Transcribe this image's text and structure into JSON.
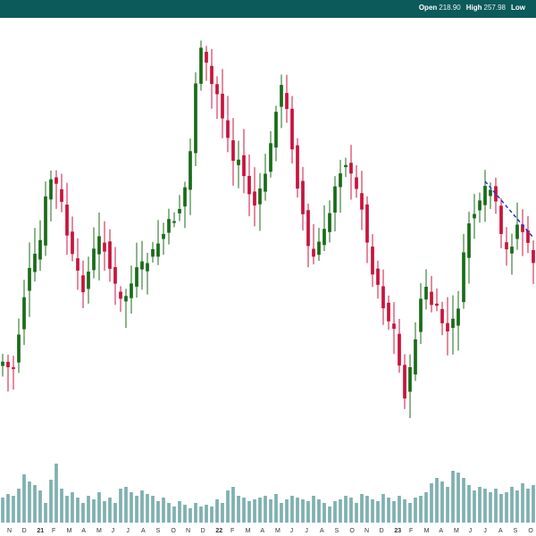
{
  "header": {
    "open_label": "Open",
    "open_value": "218.90",
    "high_label": "High",
    "high_value": "257.98",
    "low_label": "Low",
    "low_value": ""
  },
  "colors": {
    "bar_background": "#0d5a5a",
    "up": "#1a6b1a",
    "down": "#c8143c",
    "volume": "#7fb0b0",
    "trendline": "#2233cc"
  },
  "chart_data": {
    "type": "candlestick",
    "title": "",
    "xlabel": "",
    "ylabel": "",
    "x_tick_labels": [
      "N",
      "D",
      "21",
      "F",
      "M",
      "A",
      "M",
      "J",
      "J",
      "A",
      "S",
      "O",
      "N",
      "D",
      "22",
      "F",
      "M",
      "A",
      "M",
      "J",
      "J",
      "A",
      "S",
      "O",
      "N",
      "D",
      "23",
      "F",
      "M",
      "A",
      "M",
      "J",
      "J",
      "A",
      "S",
      "O"
    ],
    "year_labels": [
      "21",
      "22",
      "23"
    ],
    "price_path": [
      [
        0,
        405
      ],
      [
        1,
        412
      ],
      [
        2,
        410
      ],
      [
        3,
        372
      ],
      [
        4,
        330
      ],
      [
        5,
        305
      ],
      [
        6,
        290
      ],
      [
        7,
        270
      ],
      [
        8,
        225
      ],
      [
        9,
        200
      ],
      [
        10,
        208
      ],
      [
        11,
        230
      ],
      [
        12,
        262
      ],
      [
        13,
        290
      ],
      [
        14,
        310
      ],
      [
        15,
        320
      ],
      [
        16,
        305
      ],
      [
        17,
        282
      ],
      [
        18,
        268
      ],
      [
        19,
        275
      ],
      [
        20,
        300
      ],
      [
        21,
        322
      ],
      [
        22,
        338
      ],
      [
        23,
        330
      ],
      [
        24,
        318
      ],
      [
        25,
        305
      ],
      [
        26,
        300
      ],
      [
        27,
        292
      ],
      [
        28,
        284
      ],
      [
        29,
        272
      ],
      [
        30,
        262
      ],
      [
        31,
        252
      ],
      [
        32,
        243
      ],
      [
        33,
        232
      ],
      [
        34,
        210
      ],
      [
        35,
        170
      ],
      [
        36,
        90
      ],
      [
        37,
        60
      ],
      [
        38,
        75
      ],
      [
        39,
        95
      ],
      [
        40,
        105
      ],
      [
        41,
        130
      ],
      [
        42,
        155
      ],
      [
        43,
        180
      ],
      [
        44,
        178
      ],
      [
        45,
        198
      ],
      [
        46,
        215
      ],
      [
        47,
        230
      ],
      [
        48,
        218
      ],
      [
        49,
        192
      ],
      [
        50,
        165
      ],
      [
        51,
        118
      ],
      [
        52,
        100
      ],
      [
        53,
        125
      ],
      [
        54,
        162
      ],
      [
        55,
        205
      ],
      [
        56,
        240
      ],
      [
        57,
        278
      ],
      [
        58,
        288
      ],
      [
        59,
        272
      ],
      [
        60,
        262
      ],
      [
        61,
        238
      ],
      [
        62,
        205
      ],
      [
        63,
        188
      ],
      [
        64,
        180
      ],
      [
        65,
        200
      ],
      [
        66,
        215
      ],
      [
        67,
        228
      ],
      [
        68,
        275
      ],
      [
        69,
        300
      ],
      [
        70,
        318
      ],
      [
        71,
        340
      ],
      [
        72,
        358
      ],
      [
        73,
        370
      ],
      [
        74,
        410
      ],
      [
        75,
        440
      ],
      [
        76,
        418
      ],
      [
        77,
        375
      ],
      [
        78,
        335
      ],
      [
        79,
        325
      ],
      [
        80,
        340
      ],
      [
        81,
        350
      ],
      [
        82,
        360
      ],
      [
        83,
        372
      ],
      [
        84,
        362
      ],
      [
        85,
        340
      ],
      [
        86,
        290
      ],
      [
        87,
        248
      ],
      [
        88,
        238
      ],
      [
        89,
        232
      ],
      [
        90,
        215
      ],
      [
        91,
        212
      ],
      [
        92,
        232
      ],
      [
        93,
        268
      ],
      [
        94,
        282
      ],
      [
        95,
        270
      ],
      [
        96,
        252
      ],
      [
        97,
        258
      ],
      [
        98,
        278
      ],
      [
        99,
        290
      ]
    ],
    "volume_heights": [
      28,
      32,
      30,
      38,
      54,
      46,
      42,
      36,
      22,
      48,
      66,
      38,
      30,
      34,
      28,
      22,
      30,
      26,
      34,
      24,
      28,
      22,
      38,
      40,
      34,
      30,
      36,
      32,
      30,
      24,
      28,
      22,
      18,
      24,
      20,
      16,
      22,
      18,
      20,
      18,
      26,
      22,
      36,
      40,
      30,
      28,
      24,
      26,
      28,
      30,
      26,
      32,
      22,
      26,
      30,
      28,
      26,
      24,
      30,
      26,
      22,
      18,
      24,
      26,
      30,
      28,
      22,
      32,
      30,
      26,
      24,
      32,
      28,
      24,
      30,
      26,
      22,
      28,
      30,
      34,
      44,
      50,
      46,
      40,
      58,
      56,
      50,
      42,
      36,
      40,
      38,
      34,
      38,
      32,
      34,
      40,
      36,
      44,
      38,
      42
    ],
    "trendline": {
      "from_index": 90,
      "to_index": 99
    }
  }
}
